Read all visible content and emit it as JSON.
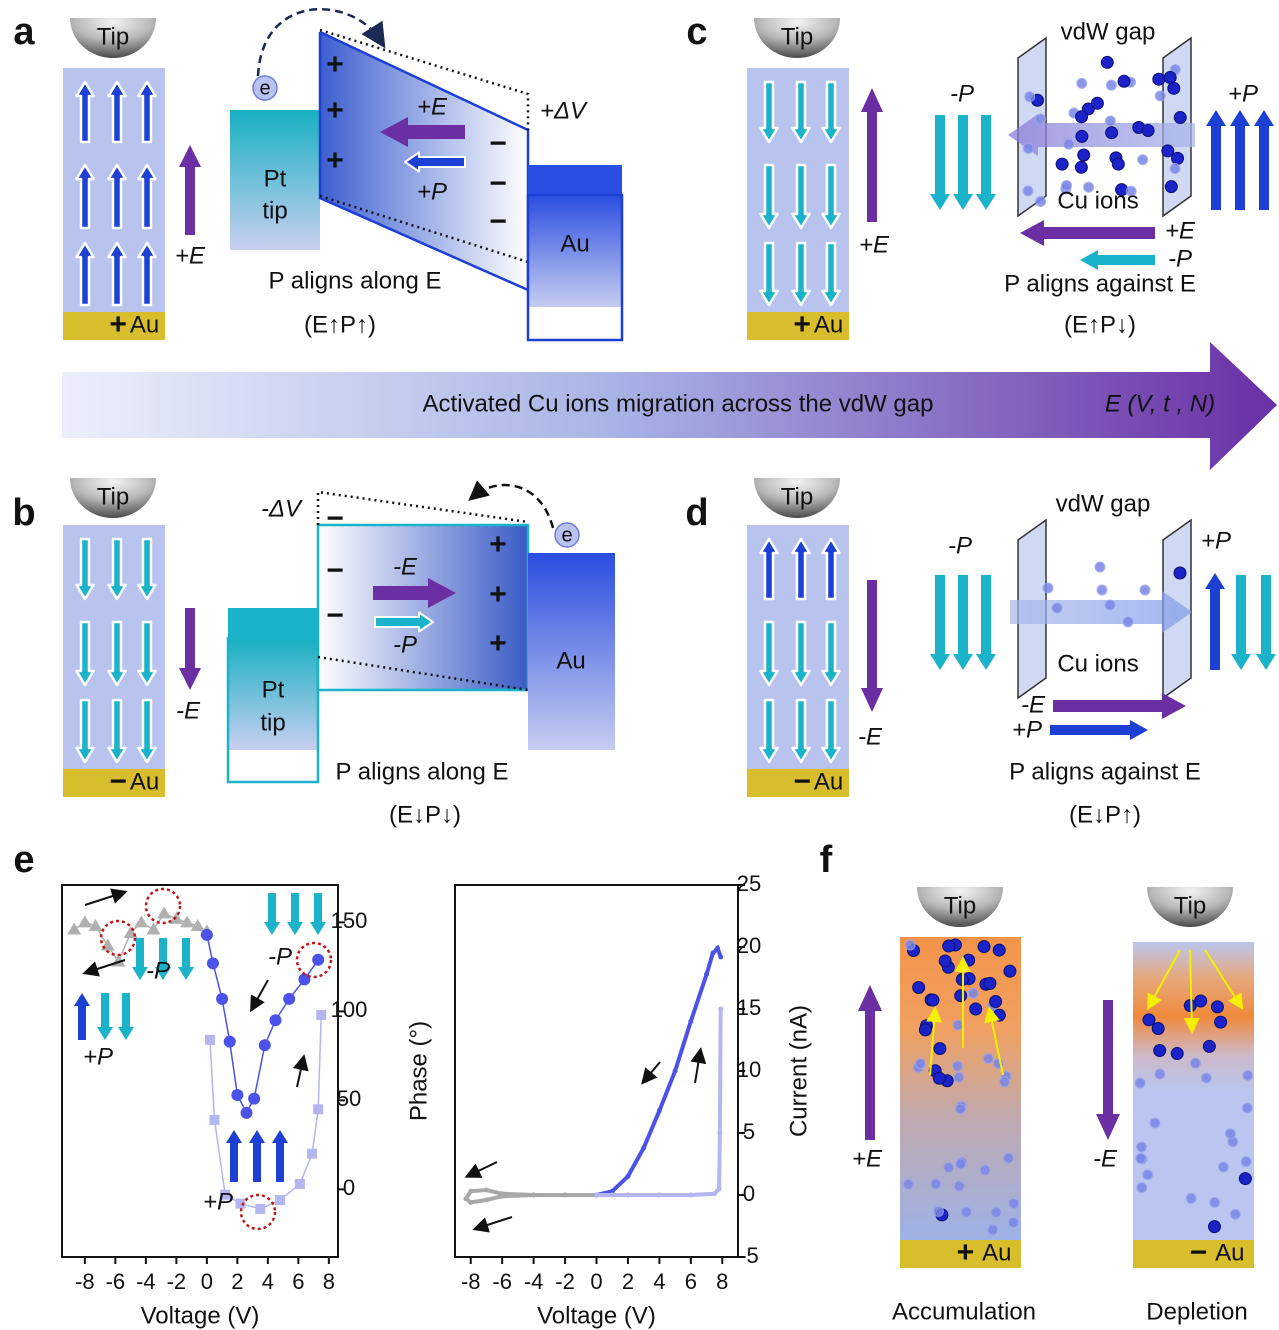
{
  "panels": {
    "a": {
      "label": "a",
      "tip": "Tip",
      "field": "+E",
      "electrode": {
        "sign": "+",
        "name": "Au"
      },
      "electron": "e",
      "pt_tip": [
        "Pt",
        "tip"
      ],
      "left_charges": [
        "+",
        "+",
        "+"
      ],
      "right_charges": [
        "−",
        "−",
        "−"
      ],
      "field_arrow": "+E",
      "polarization_arrow": "+P",
      "voltage": "+ΔV",
      "right_electrode": "Au",
      "caption": "P aligns along E",
      "relation": "(E↑P↑)"
    },
    "b": {
      "label": "b",
      "tip": "Tip",
      "field": "-E",
      "electrode": {
        "sign": "−",
        "name": "Au"
      },
      "electron": "e",
      "pt_tip": [
        "Pt",
        "tip"
      ],
      "left_charges": [
        "−",
        "−",
        "−"
      ],
      "right_charges": [
        "+",
        "+",
        "+"
      ],
      "field_arrow": "-E",
      "polarization_arrow": "-P",
      "voltage": "-ΔV",
      "right_electrode": "Au",
      "caption": "P aligns along E",
      "relation": "(E↓P↓)"
    },
    "c": {
      "label": "c",
      "tip": "Tip",
      "field": "+E",
      "electrode": {
        "sign": "+",
        "name": "Au"
      },
      "gap": "vdW gap",
      "left_polarization": "-P",
      "right_polarization": "+P",
      "ions": "Cu ions",
      "field_arrow": "+E",
      "polarization_arrow": "-P",
      "caption": "P aligns against E",
      "relation": "(E↑P↓)"
    },
    "d": {
      "label": "d",
      "tip": "Tip",
      "field": "-E",
      "electrode": {
        "sign": "−",
        "name": "Au"
      },
      "gap": "vdW gap",
      "left_polarization": "-P",
      "right_polarization": "+P",
      "ions": "Cu ions",
      "field_arrow": "-E",
      "polarization_arrow": "+P",
      "caption": "P aligns against E",
      "relation": "(E↓P↑)"
    },
    "e": {
      "label": "e"
    },
    "f": {
      "label": "f",
      "columns": [
        {
          "tip": "Tip",
          "field": "+E",
          "electrode": {
            "sign": "+",
            "name": "Au"
          },
          "caption": "Accumulation"
        },
        {
          "tip": "Tip",
          "field": "-E",
          "electrode": {
            "sign": "−",
            "name": "Au"
          },
          "caption": "Depletion"
        }
      ]
    }
  },
  "banner": {
    "text": "Activated Cu ions migration across the vdW gap",
    "variable": "E (V, t , N)"
  },
  "chart_data": [
    {
      "type": "line",
      "xlabel": "Voltage (V)",
      "ylabel": "Phase (°)",
      "xlim": [
        -9.5,
        8.6
      ],
      "ylim": [
        -38,
        171
      ],
      "xticks": [
        -8,
        -6,
        -4,
        -2,
        0,
        2,
        4,
        6,
        8
      ],
      "yticks": [
        0,
        50,
        100,
        150
      ],
      "annotations": [
        "-P",
        "-P",
        "+P",
        "+P"
      ],
      "series": [
        {
          "color": "#b0b0b0",
          "marker": "triangle",
          "x": [
            -8.7,
            -8,
            -7.3,
            -6.5,
            -5.8,
            -5,
            -4.3,
            -3.5,
            -2.8,
            -2,
            -1.3,
            -0.6,
            0
          ],
          "values": [
            146,
            150,
            148,
            137,
            128,
            144,
            150,
            146,
            155,
            152,
            150,
            148,
            145
          ]
        },
        {
          "color": "#4a52e8",
          "marker": "circle",
          "x": [
            0,
            0.4,
            1,
            1.5,
            2,
            2.6,
            3.1,
            3.8,
            4.5,
            5.4,
            6.4,
            7.3
          ],
          "values": [
            143,
            127,
            107,
            83,
            53,
            43,
            51,
            81,
            95,
            107,
            118,
            129
          ]
        },
        {
          "color": "#b3b6f0",
          "marker": "square",
          "x": [
            7.5,
            7.3,
            6.9,
            6.1,
            4.8,
            3.5,
            2.2,
            1.2,
            0.5,
            0.2
          ],
          "values": [
            98,
            45,
            20,
            3,
            -6,
            -11,
            -8,
            -3,
            39,
            84
          ]
        }
      ]
    },
    {
      "type": "line",
      "xlabel": "Voltage (V)",
      "ylabel": "Current (nA)",
      "xlim": [
        -9,
        9
      ],
      "ylim": [
        -5,
        25
      ],
      "xticks": [
        -8,
        -6,
        -4,
        -2,
        0,
        2,
        4,
        6,
        8
      ],
      "yticks": [
        -5,
        0,
        5,
        10,
        15,
        20,
        25
      ],
      "series": [
        {
          "color": "#a8a8a8",
          "marker": "circle",
          "x": [
            0,
            -2,
            -4,
            -6,
            -7,
            -8,
            -8.3,
            -8,
            -7,
            -6,
            -4,
            -2,
            0
          ],
          "values": [
            0,
            0,
            0,
            0.1,
            0.4,
            0.3,
            -0.3,
            -0.6,
            -0.4,
            -0.1,
            0,
            0,
            0
          ]
        },
        {
          "color": "#4a52e8",
          "marker": "circle",
          "x": [
            0,
            1,
            2,
            3,
            4,
            5,
            6,
            7,
            7.4,
            7.7,
            7.9
          ],
          "values": [
            0,
            0.3,
            1.5,
            3.8,
            6.8,
            10,
            14,
            17.8,
            19.5,
            19.9,
            19.2
          ]
        },
        {
          "color": "#b3b6f0",
          "marker": "circle",
          "x": [
            7.9,
            7.85,
            7.8,
            7.5,
            6,
            4,
            2,
            1,
            0
          ],
          "values": [
            15,
            5,
            0.5,
            0.1,
            0,
            0,
            0,
            0,
            0
          ]
        }
      ]
    }
  ]
}
